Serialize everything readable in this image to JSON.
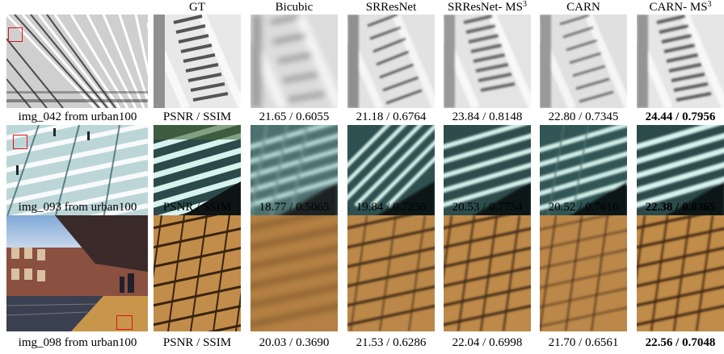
{
  "columns": {
    "gt": "GT",
    "bicubic": "Bicubic",
    "srresnet": "SRResNet",
    "srresnet_ms3_base": "SRResNet- MS",
    "srresnet_ms3_sup": "3",
    "carn": "CARN",
    "carn_ms3_base": "CARN- MS",
    "carn_ms3_sup": "3"
  },
  "rows": [
    {
      "caption": "img_042 from urban100",
      "metric_label": "PSNR / SSIM",
      "bicubic": "21.65 / 0.6055",
      "srresnet": "21.18 / 0.6764",
      "srresnet_ms3": "23.84 / 0.8148",
      "carn": "22.80 / 0.7345",
      "carn_ms3": "24.44 / 0.7956"
    },
    {
      "caption": "img_093 from urban100",
      "metric_label": "PSNR / SSIM",
      "bicubic": "18.77 / 0.5065",
      "srresnet": "19.84 / 0.7256",
      "srresnet_ms3": "20.53 / 0.7754",
      "carn": "20.52 / 0.7616",
      "carn_ms3": "22.38 / 0.8365"
    },
    {
      "caption": "img_098 from urban100",
      "metric_label": "PSNR / SSIM",
      "bicubic": "20.03 / 0.3690",
      "srresnet": "21.53 / 0.6286",
      "srresnet_ms3": "22.04 / 0.6998",
      "carn": "21.70 / 0.6561",
      "carn_ms3": "22.56 / 0.7048"
    }
  ],
  "colors": {
    "highlight_box": "#e0101a"
  }
}
